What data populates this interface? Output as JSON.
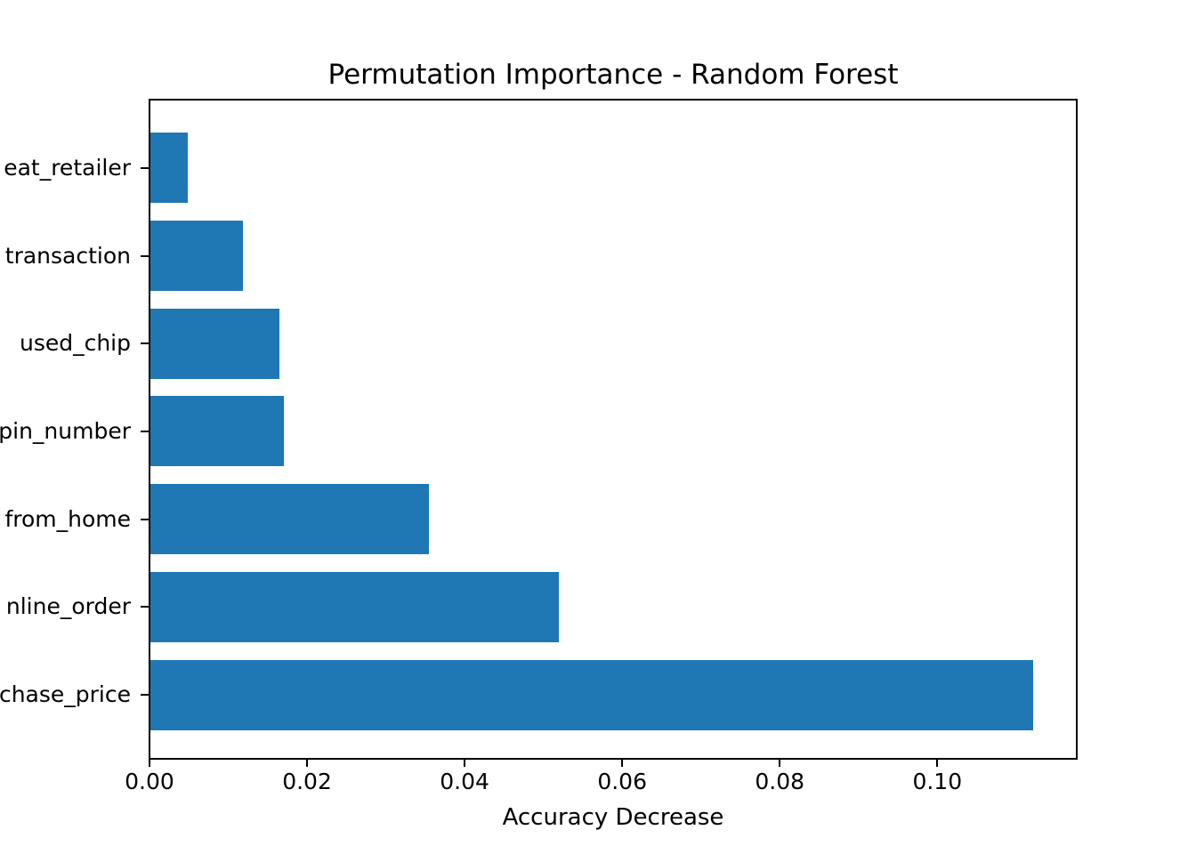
{
  "chart_data": {
    "type": "bar",
    "orientation": "horizontal",
    "title": "Permutation Importance - Random Forest",
    "xlabel": "Accuracy Decrease",
    "ylabel": "",
    "categories": [
      "eat_retailer",
      "transaction",
      "used_chip",
      "pin_number",
      "from_home",
      "nline_order",
      "chase_price"
    ],
    "values": [
      0.0047,
      0.0118,
      0.0164,
      0.0169,
      0.0353,
      0.0519,
      0.1121
    ],
    "xlim": [
      0,
      0.1177
    ],
    "xtick_values": [
      0,
      0.02,
      0.04,
      0.06,
      0.08,
      0.1
    ],
    "xtick_labels": [
      "0.00",
      "0.02",
      "0.04",
      "0.06",
      "0.08",
      "0.10"
    ],
    "bar_color": "#1f77b4",
    "axis_color": "#000000",
    "background_color": "#ffffff",
    "grid": false,
    "legend_position": "none"
  }
}
